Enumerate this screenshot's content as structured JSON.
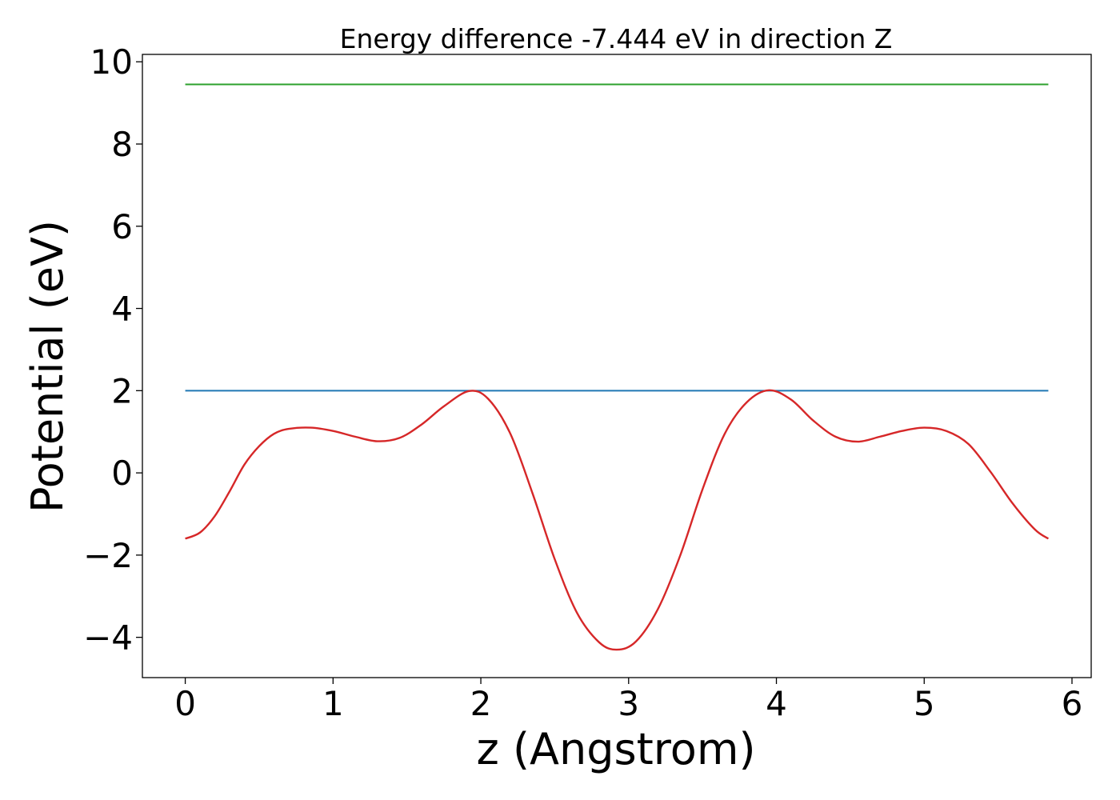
{
  "chart_data": {
    "type": "line",
    "title": "Energy difference -7.444 eV in direction Z",
    "xlabel": "z (Angstrom)",
    "ylabel": "Potential (eV)",
    "xlim": [
      -0.29,
      6.13
    ],
    "ylim": [
      -4.98,
      10.18
    ],
    "xticks": [
      0,
      1,
      2,
      3,
      4,
      5,
      6
    ],
    "xtick_labels": [
      "0",
      "1",
      "2",
      "3",
      "4",
      "5",
      "6"
    ],
    "yticks": [
      -4,
      -2,
      0,
      2,
      4,
      6,
      8,
      10
    ],
    "ytick_labels": [
      "−4",
      "−2",
      "0",
      "2",
      "4",
      "6",
      "8",
      "10"
    ],
    "grid": false,
    "series": [
      {
        "color": "#2ca02c",
        "x": [
          0,
          5.84
        ],
        "y": [
          9.45,
          9.45
        ]
      },
      {
        "color": "#1f77b4",
        "x": [
          0,
          5.84
        ],
        "y": [
          2.0,
          2.0
        ]
      },
      {
        "color": "#d62728",
        "x": [
          0.0,
          0.1,
          0.2,
          0.3,
          0.4,
          0.5,
          0.6,
          0.7,
          0.85,
          1.0,
          1.15,
          1.3,
          1.45,
          1.6,
          1.75,
          1.92,
          2.05,
          2.2,
          2.35,
          2.5,
          2.65,
          2.8,
          2.92,
          3.05,
          3.2,
          3.35,
          3.5,
          3.65,
          3.8,
          3.95,
          4.1,
          4.25,
          4.4,
          4.55,
          4.7,
          4.85,
          5.0,
          5.15,
          5.3,
          5.45,
          5.6,
          5.75,
          5.84
        ],
        "y": [
          -1.6,
          -1.45,
          -1.05,
          -0.45,
          0.2,
          0.65,
          0.95,
          1.07,
          1.1,
          1.02,
          0.88,
          0.77,
          0.85,
          1.18,
          1.62,
          1.99,
          1.8,
          0.95,
          -0.5,
          -2.1,
          -3.4,
          -4.12,
          -4.3,
          -4.1,
          -3.3,
          -2.0,
          -0.4,
          0.95,
          1.72,
          2.01,
          1.78,
          1.27,
          0.88,
          0.76,
          0.88,
          1.02,
          1.1,
          1.02,
          0.7,
          0.02,
          -0.75,
          -1.38,
          -1.6
        ]
      }
    ]
  }
}
